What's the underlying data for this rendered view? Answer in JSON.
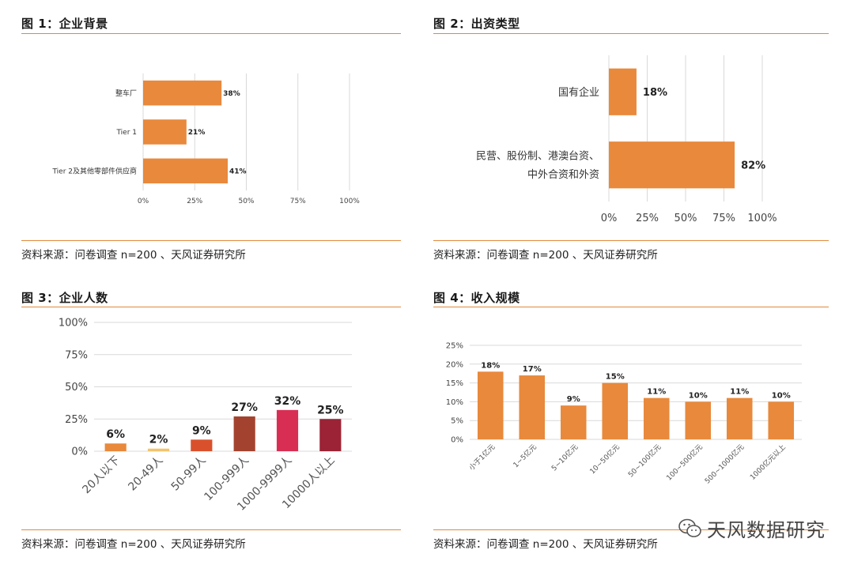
{
  "panels": [
    {
      "title": "图 1：企业背景",
      "source": "资料来源：问卷调查 n=200 、天风证券研究所"
    },
    {
      "title": "图 2：出资类型",
      "source": "资料来源：问卷调查 n=200 、天风证券研究所"
    },
    {
      "title": "图 3：企业人数",
      "source": "资料来源：问卷调查 n=200 、天风证券研究所"
    },
    {
      "title": "图 4：收入规模",
      "source": "资料来源：问卷调查 n=200 、天风证券研究所"
    }
  ],
  "watermark": "天风数据研究",
  "colors": {
    "accent": "#e08a3c",
    "bar": "#e8893c",
    "grid": "#d9d9d9"
  },
  "chart_data": [
    {
      "type": "bar",
      "orientation": "horizontal",
      "categories": [
        "整车厂",
        "Tier 1",
        "Tier 2及其他零部件供应商"
      ],
      "values": [
        38,
        21,
        41
      ],
      "data_labels": [
        "38%",
        "21%",
        "41%"
      ],
      "x_ticks": [
        "0%",
        "25%",
        "50%",
        "75%",
        "100%"
      ],
      "xlim": [
        0,
        100
      ],
      "grid": true
    },
    {
      "type": "bar",
      "orientation": "horizontal",
      "categories": [
        "国有企业",
        "民营、股份制、港澳台资、\n中外合资和外资"
      ],
      "values": [
        18,
        82
      ],
      "data_labels": [
        "18%",
        "82%"
      ],
      "x_ticks": [
        "0%",
        "25%",
        "50%",
        "75%",
        "100%"
      ],
      "xlim": [
        0,
        100
      ],
      "grid": true
    },
    {
      "type": "bar",
      "orientation": "vertical",
      "categories": [
        "20人以下",
        "20-49人",
        "50-99人",
        "100-999人",
        "1000-9999人",
        "10000人以上"
      ],
      "values": [
        6,
        2,
        9,
        27,
        32,
        25
      ],
      "data_labels": [
        "6%",
        "2%",
        "9%",
        "27%",
        "32%",
        "25%"
      ],
      "bar_colors": [
        "#e8893c",
        "#f3c46b",
        "#d9512c",
        "#a3432f",
        "#d92e53",
        "#9b2335"
      ],
      "y_ticks": [
        "0%",
        "25%",
        "50%",
        "75%",
        "100%"
      ],
      "ylim": [
        0,
        100
      ],
      "grid": true
    },
    {
      "type": "bar",
      "orientation": "vertical",
      "categories": [
        "小于1亿元",
        "1~5亿元",
        "5~10亿元",
        "10~50亿元",
        "50~100亿元",
        "100~500亿元",
        "500~1000亿元",
        "1000亿元以上"
      ],
      "values": [
        18,
        17,
        9,
        15,
        11,
        10,
        11,
        10
      ],
      "data_labels": [
        "18%",
        "17%",
        "9%",
        "15%",
        "11%",
        "10%",
        "11%",
        "10%"
      ],
      "y_ticks": [
        "0%",
        "5%",
        "10%",
        "15%",
        "20%",
        "25%"
      ],
      "ylim": [
        0,
        25
      ],
      "grid": true
    }
  ]
}
